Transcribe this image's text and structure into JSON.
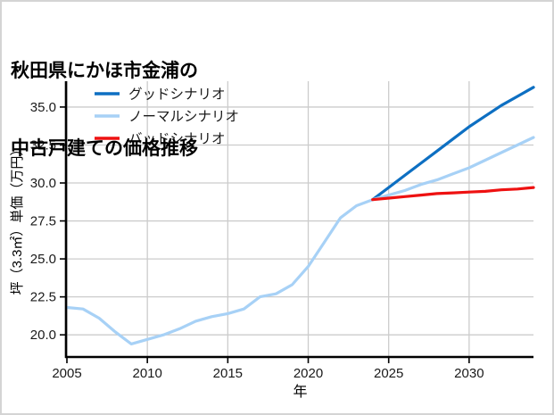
{
  "window": {
    "border_color": "#d4d4d4",
    "background": "#ffffff"
  },
  "title": {
    "line1": "秋田県にかほ市金浦の",
    "line2": "中古戸建ての価格推移"
  },
  "chart_data": {
    "type": "line",
    "title": "秋田県にかほ市金浦の中古戸建ての価格推移",
    "xlabel": "年",
    "ylabel": "坪（3.3㎡）単価（万円）",
    "xlim": [
      2005,
      2034
    ],
    "ylim": [
      18.6,
      36.7
    ],
    "xticks": [
      2005,
      2010,
      2015,
      2020,
      2025,
      2030
    ],
    "yticks": [
      20.0,
      22.5,
      25.0,
      27.5,
      30.0,
      32.5,
      35.0
    ],
    "grid": true,
    "legend_position": "upper-left",
    "colors": {
      "grid": "#cccccc",
      "spine": "#000000",
      "tick_label": "#1a1a1a"
    },
    "series": [
      {
        "name": "グッドシナリオ",
        "slug": "good-scenario",
        "color": "#0d6fc2",
        "x": [
          2024,
          2025,
          2026,
          2027,
          2028,
          2029,
          2030,
          2031,
          2032,
          2033,
          2034
        ],
        "y": [
          28.9,
          29.7,
          30.5,
          31.3,
          32.1,
          32.9,
          33.7,
          34.4,
          35.1,
          35.7,
          36.3
        ]
      },
      {
        "name": "ノーマルシナリオ",
        "slug": "normal-scenario",
        "color": "#a7d1f6",
        "x": [
          2005,
          2006,
          2007,
          2008,
          2009,
          2010,
          2011,
          2012,
          2013,
          2014,
          2015,
          2016,
          2017,
          2018,
          2019,
          2020,
          2021,
          2022,
          2023,
          2024,
          2025,
          2026,
          2027,
          2028,
          2029,
          2030,
          2031,
          2032,
          2033,
          2034
        ],
        "y": [
          21.8,
          21.7,
          21.1,
          20.2,
          19.4,
          19.7,
          20.0,
          20.4,
          20.9,
          21.2,
          21.4,
          21.7,
          22.5,
          22.7,
          23.3,
          24.5,
          26.1,
          27.7,
          28.5,
          28.9,
          29.2,
          29.5,
          29.9,
          30.2,
          30.6,
          31.0,
          31.5,
          32.0,
          32.5,
          33.0
        ]
      },
      {
        "name": "バッドシナリオ",
        "slug": "bad-scenario",
        "color": "#ee1111",
        "x": [
          2024,
          2025,
          2026,
          2027,
          2028,
          2029,
          2030,
          2031,
          2032,
          2033,
          2034
        ],
        "y": [
          28.9,
          29.0,
          29.1,
          29.2,
          29.3,
          29.35,
          29.4,
          29.45,
          29.55,
          29.6,
          29.7
        ]
      }
    ]
  }
}
